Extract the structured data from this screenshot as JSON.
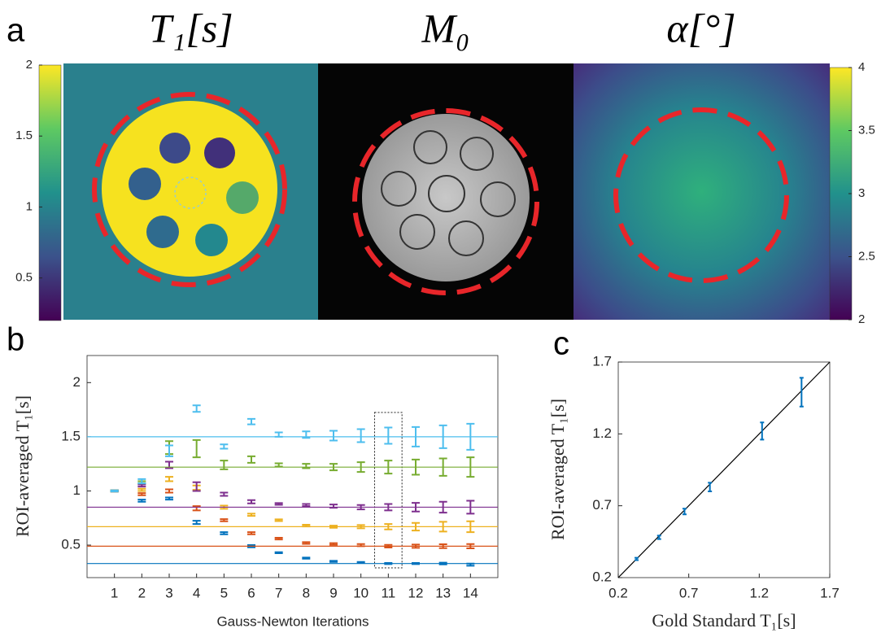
{
  "chart_data": [
    {
      "type": "image",
      "panel_label": "a",
      "titles": [
        "T₁[s]",
        "M₀",
        "α[°]"
      ],
      "colorbars": [
        {
          "ylim": [
            0.2,
            2
          ],
          "yticks": [
            0.5,
            1,
            1.5,
            2
          ]
        },
        {
          "ylim": [
            2,
            4
          ],
          "yticks": [
            2,
            2.5,
            3,
            3.5,
            4
          ]
        }
      ]
    },
    {
      "type": "errorbar",
      "panel_label": "b",
      "xlabel": "Gauss-Newton Iterations",
      "ylabel": "ROI-averaged T₁[s]",
      "xlim": [
        0,
        15
      ],
      "ylim": [
        0.2,
        2.25
      ],
      "xticks": [
        1,
        2,
        3,
        4,
        5,
        6,
        7,
        8,
        9,
        10,
        11,
        12,
        13,
        14
      ],
      "yticks": [
        0.5,
        1,
        1.5,
        2
      ],
      "highlight_x": 11,
      "x": [
        1,
        2,
        3,
        4,
        5,
        6,
        7,
        8,
        9,
        10,
        11,
        12,
        13,
        14
      ],
      "series": [
        {
          "color": "#0072bd",
          "reference": 0.33,
          "values": [
            1.0,
            0.91,
            0.93,
            0.71,
            0.61,
            0.49,
            0.43,
            0.38,
            0.35,
            0.34,
            0.33,
            0.33,
            0.33,
            0.32
          ],
          "errors": [
            0.005,
            0.01,
            0.01,
            0.015,
            0.01,
            0.01,
            0.005,
            0.005,
            0.005,
            0.005,
            0.005,
            0.005,
            0.008,
            0.01
          ]
        },
        {
          "color": "#d95319",
          "reference": 0.49,
          "values": [
            1.0,
            0.97,
            1.0,
            0.84,
            0.73,
            0.61,
            0.56,
            0.52,
            0.51,
            0.5,
            0.49,
            0.49,
            0.49,
            0.49
          ],
          "errors": [
            0.005,
            0.01,
            0.015,
            0.02,
            0.01,
            0.01,
            0.008,
            0.008,
            0.008,
            0.01,
            0.012,
            0.015,
            0.018,
            0.02
          ]
        },
        {
          "color": "#edb120",
          "reference": 0.67,
          "values": [
            1.0,
            1.01,
            1.11,
            1.03,
            0.85,
            0.78,
            0.73,
            0.68,
            0.67,
            0.67,
            0.67,
            0.67,
            0.67,
            0.67
          ],
          "errors": [
            0.005,
            0.01,
            0.02,
            0.02,
            0.015,
            0.01,
            0.008,
            0.008,
            0.01,
            0.015,
            0.025,
            0.035,
            0.045,
            0.05
          ]
        },
        {
          "color": "#7e2f8e",
          "reference": 0.85,
          "values": [
            1.0,
            1.05,
            1.24,
            1.04,
            0.97,
            0.9,
            0.88,
            0.87,
            0.86,
            0.85,
            0.85,
            0.85,
            0.85,
            0.85
          ],
          "errors": [
            0.005,
            0.01,
            0.03,
            0.04,
            0.015,
            0.015,
            0.008,
            0.01,
            0.015,
            0.02,
            0.03,
            0.04,
            0.05,
            0.06
          ]
        },
        {
          "color": "#77ac30",
          "reference": 1.22,
          "values": [
            1.0,
            1.08,
            1.4,
            1.39,
            1.24,
            1.29,
            1.24,
            1.23,
            1.22,
            1.22,
            1.22,
            1.22,
            1.22,
            1.22
          ],
          "errors": [
            0.005,
            0.01,
            0.06,
            0.08,
            0.04,
            0.03,
            0.015,
            0.02,
            0.03,
            0.045,
            0.06,
            0.07,
            0.08,
            0.09
          ]
        },
        {
          "color": "#4dbeee",
          "reference": 1.5,
          "values": [
            1.0,
            1.09,
            1.37,
            1.76,
            1.41,
            1.64,
            1.52,
            1.52,
            1.51,
            1.51,
            1.51,
            1.5,
            1.5,
            1.5
          ],
          "errors": [
            0.005,
            0.02,
            0.05,
            0.03,
            0.02,
            0.025,
            0.02,
            0.03,
            0.045,
            0.06,
            0.075,
            0.09,
            0.105,
            0.12
          ]
        }
      ]
    },
    {
      "type": "scatter",
      "panel_label": "c",
      "xlabel": "Gold Standard T₁[s]",
      "ylabel": "ROI-averaged T₁[s]",
      "xlim": [
        0.2,
        1.7
      ],
      "ylim": [
        0.2,
        1.7
      ],
      "xticks": [
        0.2,
        0.7,
        1.2,
        1.7
      ],
      "yticks": [
        0.2,
        0.7,
        1.2,
        1.7
      ],
      "identity_line": true,
      "color": "#0072bd",
      "x": [
        0.33,
        0.49,
        0.67,
        0.85,
        1.22,
        1.5
      ],
      "y": [
        0.33,
        0.48,
        0.66,
        0.83,
        1.22,
        1.49
      ],
      "errors": [
        0.008,
        0.012,
        0.02,
        0.03,
        0.06,
        0.1
      ]
    }
  ]
}
